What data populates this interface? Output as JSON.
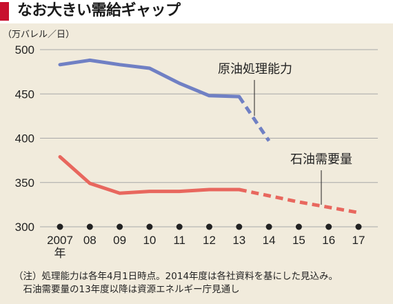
{
  "header": {
    "title": "なお大きい需給ギャップ",
    "accent_color": "#c8102e"
  },
  "colors": {
    "panel_bg": "#f1ebdc",
    "capacity": "#7080c4",
    "demand": "#e8675e",
    "dot": "#222222",
    "grid": "#a8a8a8"
  },
  "chart_data": {
    "type": "line",
    "unit_label": "（万バレル／日）",
    "x": [
      "2007",
      "08",
      "09",
      "10",
      "11",
      "12",
      "13",
      "14",
      "15",
      "16",
      "17"
    ],
    "x_first_suffix": "年",
    "ylim": [
      300,
      500
    ],
    "yticks": [
      300,
      350,
      400,
      450,
      500
    ],
    "grid": true,
    "series": [
      {
        "name": "原油処理能力",
        "color": "#7080c4",
        "values": [
          483,
          488,
          483,
          479,
          462,
          448,
          447,
          397,
          null,
          null,
          null
        ],
        "solid_until_index": 6
      },
      {
        "name": "石油需要量",
        "color": "#e8675e",
        "values": [
          379,
          349,
          338,
          340,
          340,
          342,
          342,
          335,
          328,
          322,
          316
        ],
        "solid_until_index": 6
      }
    ],
    "note": [
      "（注）処理能力は各年4月1日時点。2014年度は各社資料を基にした見込み。",
      "　石油需要量の13年度以降は資源エネルギー庁見通し"
    ]
  }
}
